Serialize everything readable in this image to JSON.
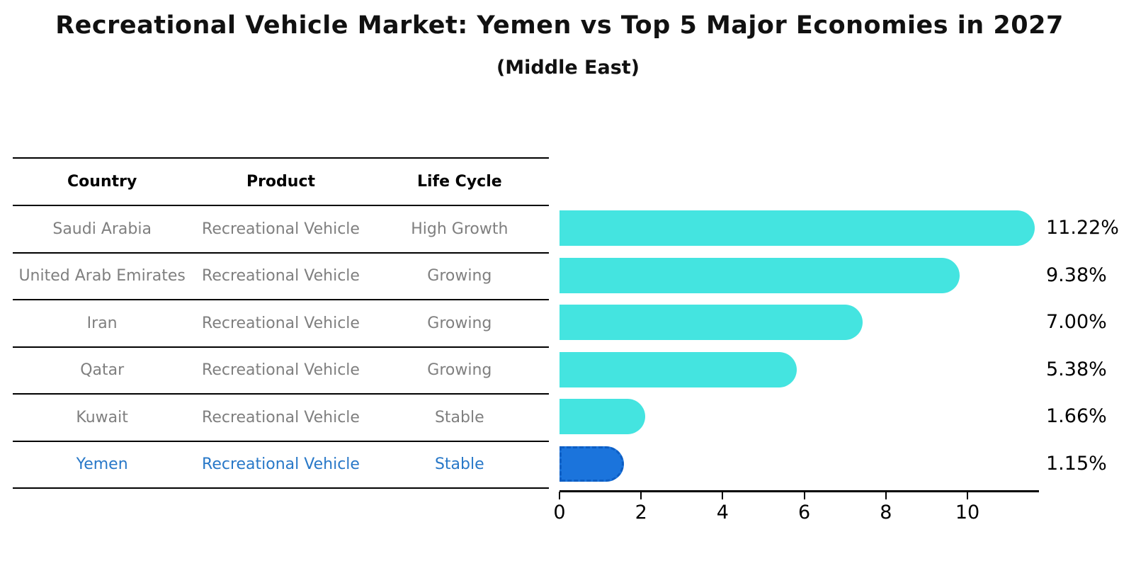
{
  "title": "Recreational Vehicle Market: Yemen vs Top 5 Major Economies in 2027",
  "subtitle": "(Middle East)",
  "table": {
    "headers": [
      "Country",
      "Product",
      "Life Cycle"
    ],
    "rows": [
      {
        "country": "Saudi Arabia",
        "product": "Recreational Vehicle",
        "life_cycle": "High Growth",
        "highlight": false
      },
      {
        "country": "United Arab Emirates",
        "product": "Recreational Vehicle",
        "life_cycle": "Growing",
        "highlight": false
      },
      {
        "country": "Iran",
        "product": "Recreational Vehicle",
        "life_cycle": "Growing",
        "highlight": false
      },
      {
        "country": "Qatar",
        "product": "Recreational Vehicle",
        "life_cycle": "Growing",
        "highlight": false
      },
      {
        "country": "Kuwait",
        "product": "Recreational Vehicle",
        "life_cycle": "Stable",
        "highlight": false
      },
      {
        "country": "Yemen",
        "product": "Recreational Vehicle",
        "life_cycle": "Stable",
        "highlight": true
      }
    ]
  },
  "chart_data": {
    "type": "bar",
    "orientation": "horizontal",
    "title": "Recreational Vehicle Market: Yemen vs Top 5 Major Economies in 2027",
    "subtitle": "(Middle East)",
    "categories": [
      "Saudi Arabia",
      "United Arab Emirates",
      "Iran",
      "Qatar",
      "Kuwait",
      "Yemen"
    ],
    "values": [
      11.22,
      9.38,
      7.0,
      5.38,
      1.66,
      1.15
    ],
    "value_labels": [
      "11.22%",
      "9.38%",
      "7.00%",
      "5.38%",
      "1.66%",
      "1.15%"
    ],
    "highlight_index": 5,
    "x_ticks": [
      "0",
      "2",
      "4",
      "6",
      "8",
      "10"
    ],
    "x_tick_values": [
      0,
      2,
      4,
      6,
      8,
      10
    ],
    "xlim": [
      0,
      11.75
    ],
    "grid": false,
    "legend": null,
    "colors": {
      "bar_default": "#44e4e0",
      "bar_highlight": "#1b74dc",
      "bar_highlight_border": "#0d5ec4",
      "highlight_text": "#2878c8",
      "table_text": "#7f7f7f"
    }
  }
}
